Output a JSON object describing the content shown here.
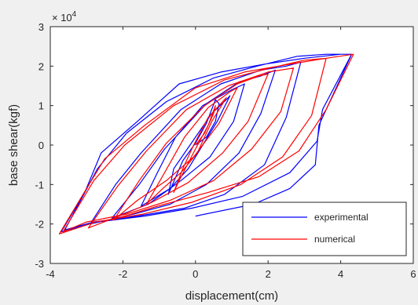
{
  "chart_data": {
    "type": "line",
    "title": "",
    "xlabel": "displacement(cm)",
    "ylabel": "base shear(kgf)",
    "xlim": [
      -4,
      6
    ],
    "ylim": [
      -3,
      3
    ],
    "y_exponent_label": "× 10",
    "y_exponent": "4",
    "xticks": [
      -4,
      -2,
      0,
      2,
      4,
      6
    ],
    "xtick_labels": [
      "-4",
      "-2",
      "0",
      "2",
      "4",
      "6"
    ],
    "yticks": [
      -3,
      -2,
      -1,
      0,
      1,
      2,
      3
    ],
    "ytick_labels": [
      "-3",
      "-2",
      "-1",
      "0",
      "1",
      "2",
      "3"
    ],
    "grid": false,
    "legend_position": "bottom-right",
    "series": [
      {
        "name": "experimental",
        "color": "#0000ff",
        "x": [
          0.0,
          0.3,
          0.55,
          0.65,
          0.55,
          0.3,
          0.0,
          -0.35,
          -0.75,
          -0.6,
          -0.3,
          0.0,
          0.45,
          0.85,
          0.95,
          0.6,
          0.2,
          -0.2,
          -0.7,
          -1.5,
          -1.05,
          -0.55,
          0.2,
          1.0,
          1.35,
          1.05,
          0.4,
          -0.4,
          -1.3,
          -2.3,
          -1.55,
          -0.85,
          0.3,
          1.2,
          1.8,
          2.2,
          1.8,
          1.2,
          0.3,
          -0.7,
          -1.7,
          -2.9,
          -2.2,
          -1.5,
          -0.4,
          0.7,
          1.8,
          2.5,
          2.9,
          2.5,
          1.9,
          0.8,
          -0.3,
          -1.6,
          -2.8,
          -3.6,
          -2.7,
          -1.9,
          -0.8,
          0.5,
          1.7,
          2.8,
          3.6,
          4.3,
          3.5,
          3.35,
          2.6,
          1.3,
          -0.1,
          -1.4,
          -2.7,
          -3.7,
          -3.05,
          -2.6,
          -1.6,
          -0.45,
          0.7,
          1.9,
          3.0,
          4.0,
          4.3,
          3.4,
          3.3,
          2.6,
          1.6,
          0.0
        ],
        "y": [
          0.0,
          0.2,
          0.6,
          1.05,
          1.15,
          0.55,
          0.05,
          -0.4,
          -1.25,
          -0.6,
          -0.2,
          0.2,
          0.8,
          1.15,
          1.25,
          0.6,
          0.0,
          -0.6,
          -1.1,
          -1.55,
          -0.7,
          0.2,
          1.0,
          1.4,
          1.55,
          0.6,
          -0.3,
          -0.9,
          -1.5,
          -1.85,
          -1.0,
          -0.1,
          1.05,
          1.6,
          1.75,
          1.9,
          0.8,
          -0.2,
          -1.0,
          -1.5,
          -1.75,
          -2.0,
          -1.0,
          -0.2,
          0.9,
          1.55,
          1.9,
          2.0,
          2.1,
          0.7,
          -0.5,
          -1.25,
          -1.6,
          -1.8,
          -1.95,
          -2.15,
          -0.6,
          0.3,
          1.1,
          1.7,
          2.0,
          2.25,
          2.3,
          2.3,
          0.9,
          0.1,
          -0.7,
          -1.3,
          -1.6,
          -1.8,
          -1.95,
          -2.2,
          -1.2,
          -0.2,
          0.6,
          1.55,
          1.85,
          2.05,
          2.2,
          2.3,
          2.3,
          0.5,
          -0.5,
          -1.1,
          -1.5,
          -1.8
        ]
      },
      {
        "name": "numerical",
        "color": "#ff0000",
        "x": [
          0.0,
          0.25,
          0.5,
          0.55,
          0.35,
          0.0,
          -0.45,
          -0.6,
          -0.35,
          -0.05,
          0.35,
          0.75,
          0.85,
          0.45,
          0.05,
          -0.4,
          -0.9,
          -1.35,
          -0.85,
          -0.3,
          0.35,
          0.95,
          1.15,
          0.65,
          -0.05,
          -0.8,
          -1.6,
          -2.25,
          -1.55,
          -0.8,
          0.25,
          1.15,
          1.75,
          2.0,
          1.45,
          0.75,
          -0.2,
          -1.2,
          -2.1,
          -2.95,
          -2.15,
          -1.35,
          -0.25,
          0.9,
          2.0,
          2.7,
          2.35,
          1.55,
          0.5,
          -0.7,
          -1.9,
          -3.0,
          -3.65,
          -2.8,
          -1.95,
          -0.6,
          0.8,
          2.05,
          3.0,
          3.6,
          3.2,
          2.4,
          1.25,
          -0.1,
          -1.45,
          -2.75,
          -3.75,
          -3.0,
          -2.5,
          -1.4,
          0.0,
          1.35,
          2.6,
          3.6,
          4.35,
          3.6,
          2.85,
          1.75,
          0.35,
          -1.05,
          -2.3
        ],
        "y": [
          0.0,
          0.3,
          0.8,
          1.0,
          0.5,
          -0.1,
          -0.9,
          -1.2,
          -0.6,
          0.0,
          0.7,
          1.1,
          1.2,
          0.6,
          -0.2,
          -0.7,
          -1.1,
          -1.5,
          -0.7,
          0.2,
          0.95,
          1.35,
          1.45,
          0.55,
          -0.3,
          -0.9,
          -1.4,
          -1.9,
          -0.9,
          0.05,
          1.0,
          1.55,
          1.75,
          1.8,
          0.6,
          -0.2,
          -0.95,
          -1.45,
          -1.8,
          -2.1,
          -1.05,
          -0.15,
          0.9,
          1.5,
          1.85,
          1.95,
          0.85,
          -0.1,
          -0.9,
          -1.4,
          -1.75,
          -1.95,
          -2.2,
          -0.9,
          0.0,
          1.0,
          1.65,
          1.95,
          2.15,
          2.2,
          0.75,
          -0.3,
          -1.0,
          -1.45,
          -1.75,
          -1.95,
          -2.25,
          -1.1,
          -0.35,
          0.5,
          1.45,
          1.85,
          2.05,
          2.2,
          2.3,
          0.9,
          -0.15,
          -0.8,
          -1.2,
          -1.55,
          -1.9
        ]
      }
    ]
  }
}
